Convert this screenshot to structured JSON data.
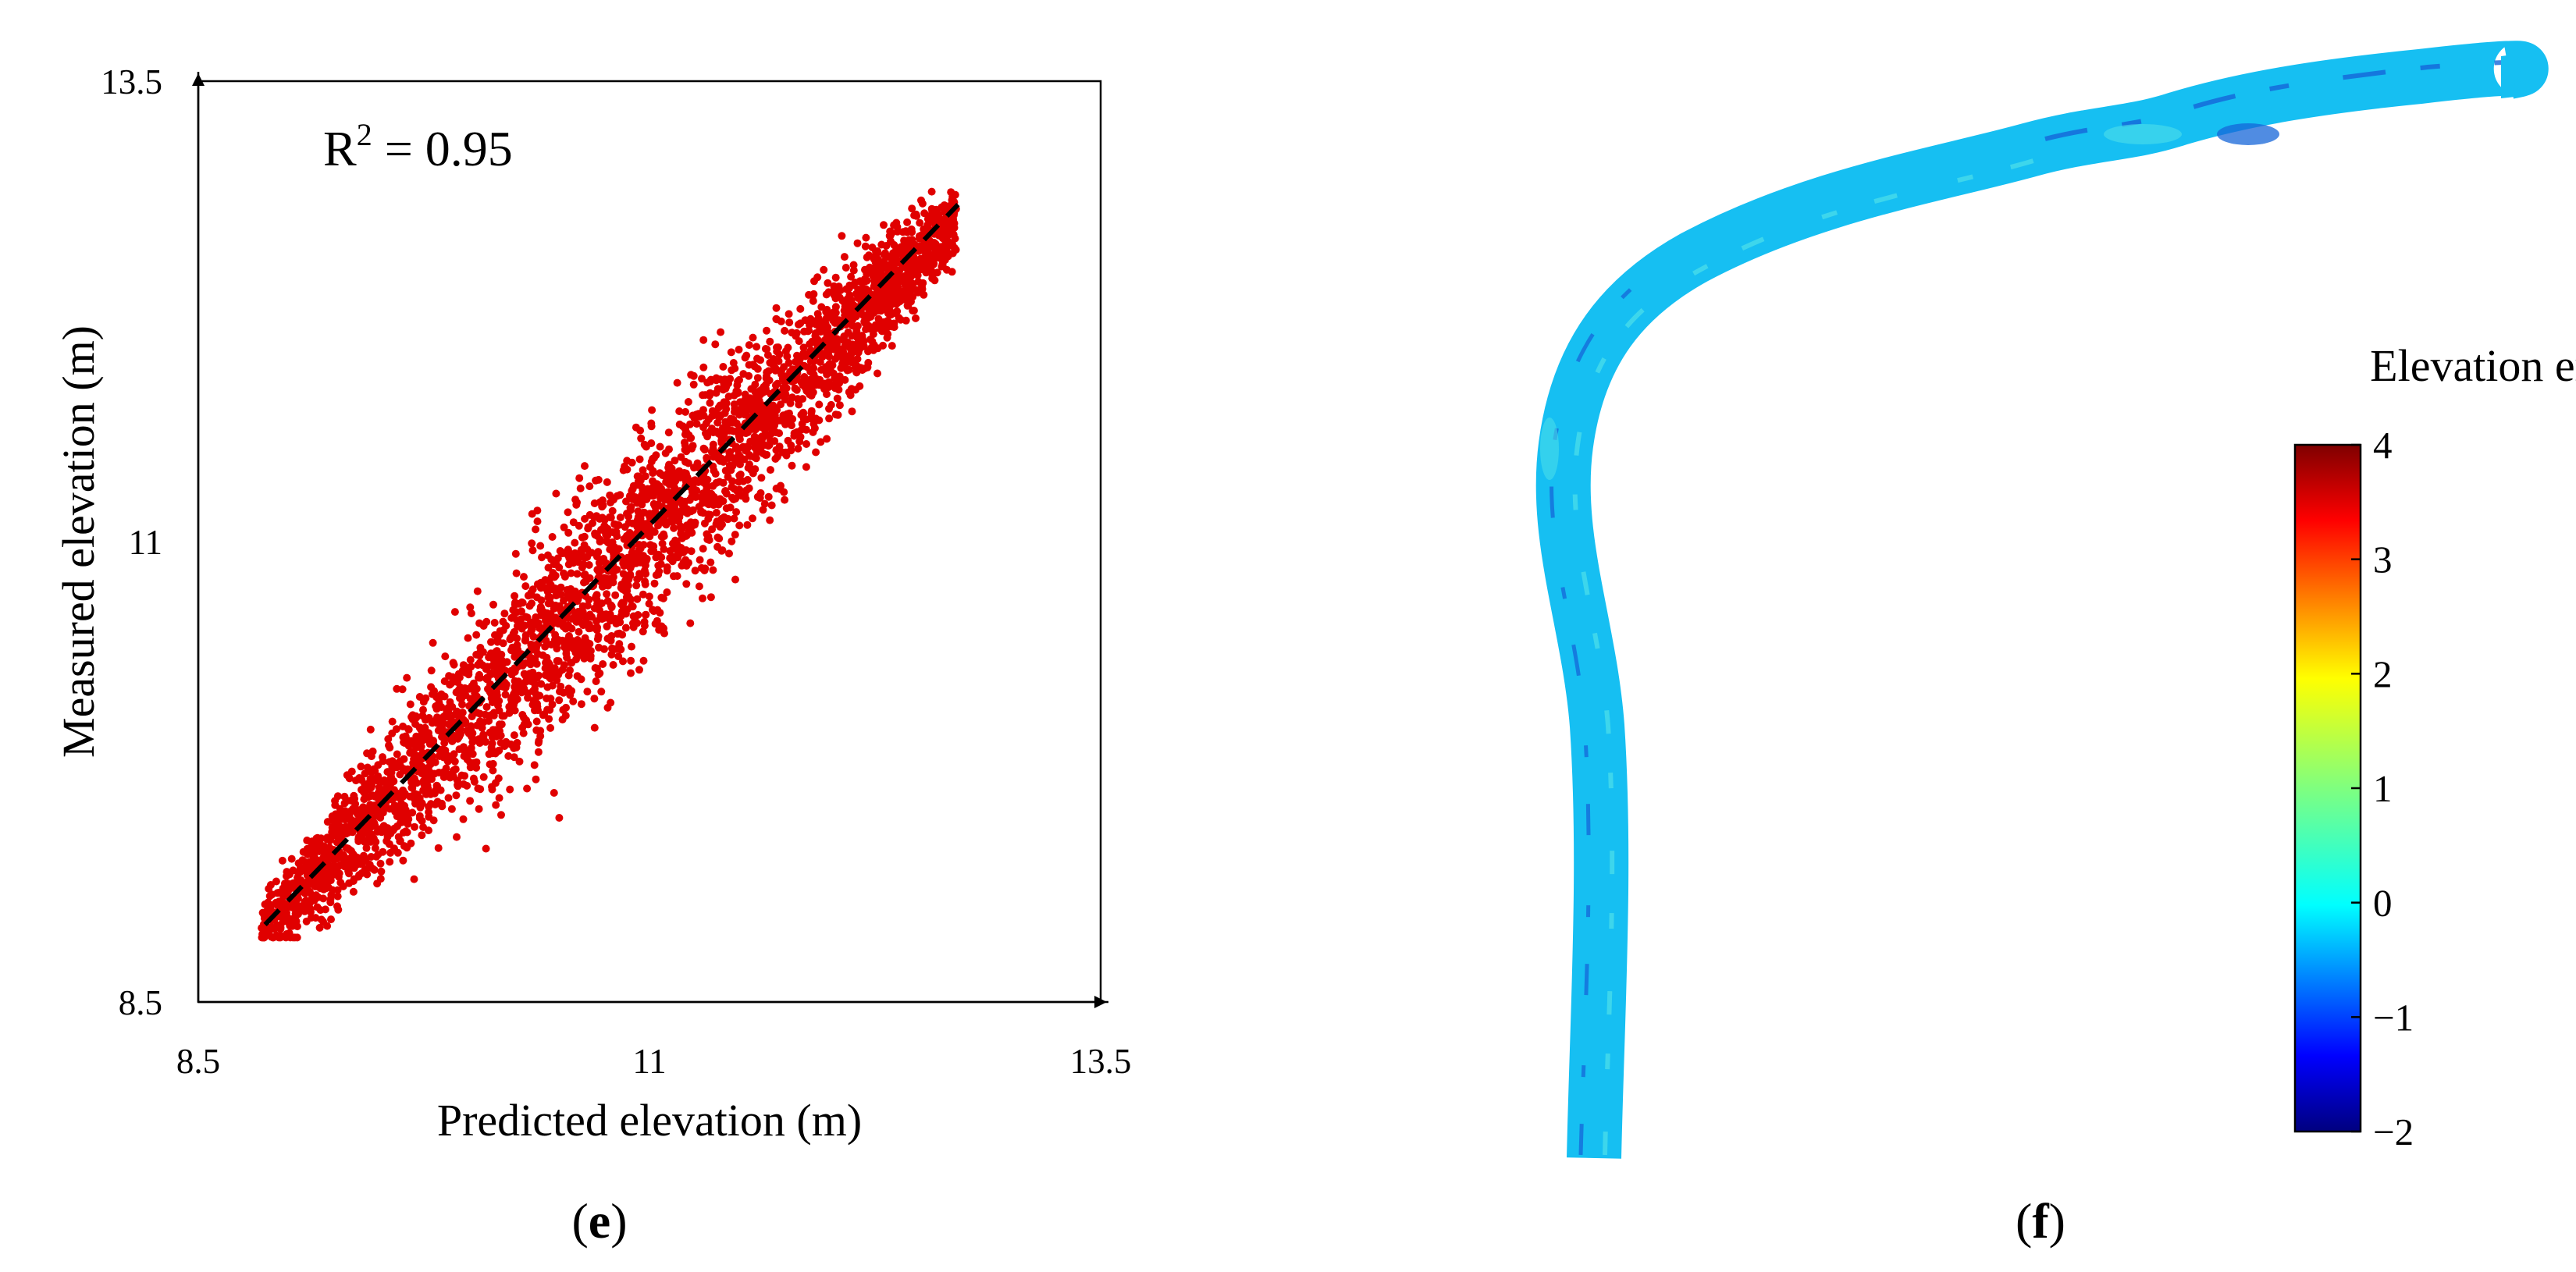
{
  "panels": [
    {
      "label_open": "(",
      "label_letter": "e",
      "label_close": ")",
      "chart_data": {
        "type": "scatter",
        "title": "",
        "xlabel": "Predicted elevation (m)",
        "ylabel": "Measured elevation (m)",
        "xlim": [
          8.5,
          13.5
        ],
        "ylim": [
          8.5,
          13.5
        ],
        "xticks": [
          "8.5",
          "11",
          "13.5"
        ],
        "yticks": [
          "8.5",
          "11",
          "13.5"
        ],
        "annotation": {
          "text": "R",
          "superscript": "2",
          "value_text": " = 0.95"
        },
        "series": [
          {
            "color": "#e00000",
            "marker": "dot",
            "approx_point_count": 15000,
            "description_trend": "strong positive linear relationship",
            "x_range": [
              8.85,
              12.7
            ],
            "y_range": [
              8.85,
              12.9
            ],
            "sample_points": [
              [
                8.9,
                8.95
              ],
              [
                9.2,
                9.2
              ],
              [
                9.5,
                9.6
              ],
              [
                9.8,
                9.9
              ],
              [
                10.0,
                10.2
              ],
              [
                10.2,
                10.3
              ],
              [
                10.4,
                10.6
              ],
              [
                10.6,
                10.7
              ],
              [
                10.8,
                10.9
              ],
              [
                11.0,
                11.1
              ],
              [
                11.2,
                11.3
              ],
              [
                11.4,
                11.5
              ],
              [
                11.6,
                11.8
              ],
              [
                11.8,
                11.9
              ],
              [
                12.0,
                12.1
              ],
              [
                12.2,
                12.3
              ],
              [
                12.4,
                12.5
              ],
              [
                12.6,
                12.7
              ],
              [
                9.8,
                10.45
              ],
              [
                10.5,
                9.5
              ],
              [
                12.2,
                12.65
              ],
              [
                11.4,
                10.95
              ],
              [
                10.35,
                11.15
              ],
              [
                9.6,
                10.2
              ]
            ]
          }
        ],
        "reference_line": {
          "style": "dashed",
          "color": "#000000",
          "from": [
            8.87,
            8.92
          ],
          "to": [
            12.71,
            12.83
          ]
        }
      }
    },
    {
      "label_open": "(",
      "label_letter": "f",
      "label_close": ")",
      "chart_data": {
        "type": "heatmap",
        "title": "",
        "description": "Map of elevation error along a curved river channel",
        "colorbar": {
          "title": "Elevation error (m)",
          "min": -2,
          "max": 4,
          "ticks": [
            "4",
            "3",
            "2",
            "1",
            "0",
            "−1",
            "−2"
          ],
          "tick_values": [
            4,
            3,
            2,
            1,
            0,
            -1,
            -2
          ],
          "colormap": "jet"
        },
        "dominant_value_range": [
          -0.5,
          0.3
        ],
        "dominant_color": "#00bfff"
      }
    }
  ],
  "colors": {
    "points": "#e00000",
    "river": "#16bff2",
    "river_dark": "#1565d8",
    "river_light": "#4fe0ea",
    "axes": "#000000"
  }
}
